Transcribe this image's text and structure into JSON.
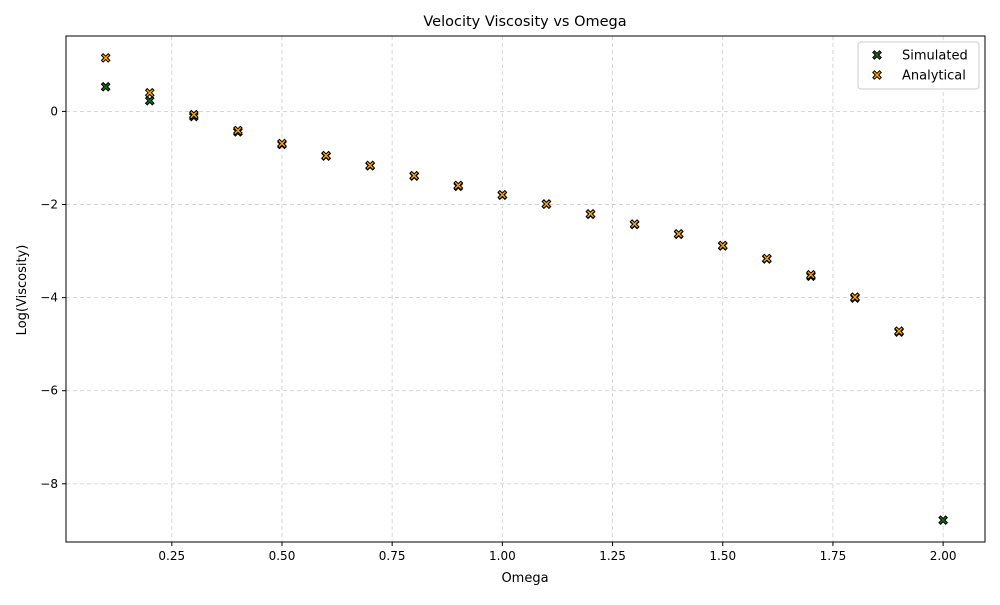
{
  "chart_data": {
    "type": "scatter",
    "title": "Velocity Viscosity vs Omega",
    "xlabel": "Omega",
    "ylabel": "Log(Viscosity)",
    "xlim": [
      0.01,
      2.095
    ],
    "ylim": [
      -9.25,
      1.62
    ],
    "x_ticks": [
      0.25,
      0.5,
      0.75,
      1.0,
      1.25,
      1.5,
      1.75,
      2.0
    ],
    "x_tick_labels": [
      "0.25",
      "0.50",
      "0.75",
      "1.00",
      "1.25",
      "1.50",
      "1.75",
      "2.00"
    ],
    "y_ticks": [
      -8,
      -6,
      -4,
      -2,
      0
    ],
    "y_tick_labels": [
      "−8",
      "−6",
      "−4",
      "−2",
      "0"
    ],
    "grid": true,
    "legend_position": "top-right",
    "marker": "X",
    "series": [
      {
        "name": "Simulated",
        "color": "#1a6b1a",
        "x": [
          0.1,
          0.2,
          0.3,
          0.4,
          0.5,
          0.6,
          0.7,
          0.8,
          0.9,
          1.0,
          1.1,
          1.2,
          1.3,
          1.4,
          1.5,
          1.6,
          1.7,
          1.8,
          1.9,
          2.0
        ],
        "y": [
          0.53,
          0.23,
          -0.11,
          -0.44,
          -0.71,
          -0.96,
          -1.17,
          -1.39,
          -1.61,
          -1.8,
          -1.99,
          -2.21,
          -2.43,
          -2.64,
          -2.89,
          -3.17,
          -3.54,
          -4.01,
          -4.74,
          -8.78
        ]
      },
      {
        "name": "Analytical",
        "color": "#ffa500",
        "x": [
          0.1,
          0.2,
          0.3,
          0.4,
          0.5,
          0.6,
          0.7,
          0.8,
          0.9,
          1.0,
          1.1,
          1.2,
          1.3,
          1.4,
          1.5,
          1.6,
          1.7,
          1.8,
          1.9
        ],
        "y": [
          1.15,
          0.4,
          -0.07,
          -0.41,
          -0.69,
          -0.95,
          -1.16,
          -1.38,
          -1.59,
          -1.79,
          -1.99,
          -2.2,
          -2.42,
          -2.63,
          -2.88,
          -3.16,
          -3.51,
          -3.99,
          -4.72
        ]
      }
    ]
  }
}
